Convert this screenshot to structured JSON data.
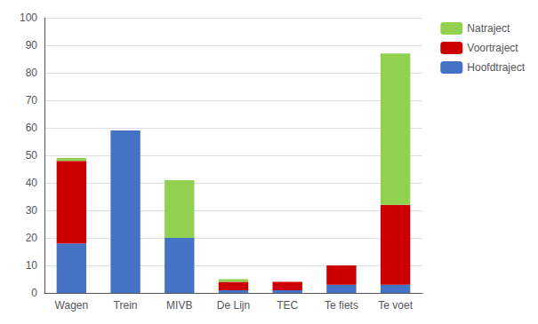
{
  "chart_data": {
    "type": "bar",
    "stacked": true,
    "categories": [
      "Wagen",
      "Trein",
      "MIVB",
      "De Lijn",
      "TEC",
      "Te fiets",
      "Te voet"
    ],
    "series": [
      {
        "name": "Hoofdtraject",
        "color": "#4472C4",
        "values": [
          18,
          59,
          20,
          1,
          1,
          3,
          3
        ]
      },
      {
        "name": "Voortraject",
        "color": "#CC0000",
        "values": [
          30,
          0,
          0,
          3,
          3,
          7,
          29
        ]
      },
      {
        "name": "Natraject",
        "color": "#92D050",
        "values": [
          1,
          0,
          21,
          1,
          0,
          0,
          55
        ]
      }
    ],
    "ylim": [
      0,
      100
    ],
    "yticks": [
      0,
      10,
      20,
      30,
      40,
      50,
      60,
      70,
      80,
      90,
      100
    ],
    "grid": true,
    "legend": "upper right"
  }
}
